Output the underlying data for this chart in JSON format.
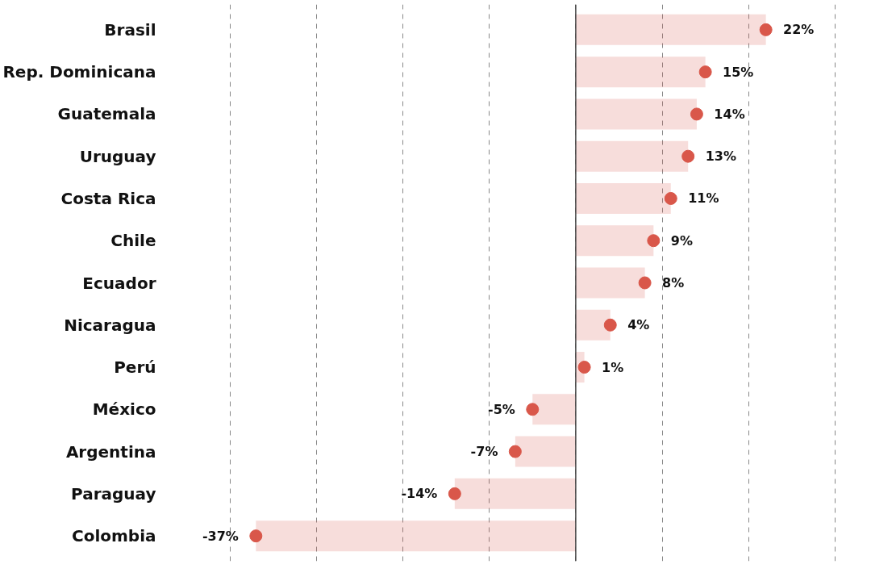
{
  "chart_data": {
    "type": "lollipop",
    "orientation": "horizontal",
    "categories": [
      "Brasil",
      "Rep. Dominicana",
      "Guatemala",
      "Uruguay",
      "Costa Rica",
      "Chile",
      "Ecuador",
      "Nicaragua",
      "Perú",
      "México",
      "Argentina",
      "Paraguay",
      "Colombia"
    ],
    "series": [
      {
        "color": "#d9574a",
        "values": [
          22,
          15,
          14,
          13,
          11,
          9,
          8,
          4,
          1,
          -5,
          -7,
          -14,
          -37
        ],
        "value_labels": [
          "22%",
          "15%",
          "14%",
          "13%",
          "11%",
          "9%",
          "8%",
          "4%",
          "1%",
          "-5%",
          "-7%",
          "-14%",
          "-37%"
        ]
      }
    ],
    "grid": "x",
    "marker": "circle",
    "tick_labels": "y"
  }
}
